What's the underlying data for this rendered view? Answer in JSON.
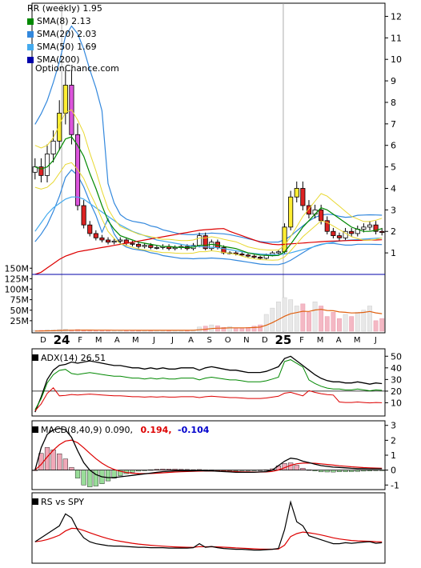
{
  "main": {
    "title": "RR (weekly) 1.95",
    "legend": [
      {
        "label": "SMA(8) 2.13",
        "color": "#008800"
      },
      {
        "label": "SMA(20) 2.03",
        "color": "#3388dd"
      },
      {
        "label": "SMA(50) 1.69",
        "color": "#44aaee"
      },
      {
        "label": "SMA(200)",
        "color": "#0000aa"
      }
    ],
    "site": "OptionChance.com",
    "price_ticks": [
      "1",
      "2",
      "3",
      "4",
      "5",
      "6",
      "7",
      "8",
      "9",
      "10",
      "11",
      "12"
    ],
    "volume_ticks": [
      "25M",
      "50M",
      "75M",
      "100M",
      "125M",
      "150M"
    ],
    "month_ticks": [
      "D",
      "24",
      "F",
      "M",
      "A",
      "M",
      "J",
      "J",
      "A",
      "S",
      "O",
      "N",
      "D",
      "25",
      "F",
      "M",
      "A",
      "M",
      "J"
    ]
  },
  "adx": {
    "label": "ADX(14) 26.51",
    "ticks": [
      "10",
      "20",
      "30",
      "40",
      "50"
    ]
  },
  "macd": {
    "label": "MACD(8,40,9) 0.090,",
    "signal": "0.194,",
    "hist": "-0.104",
    "signal_color": "#dd0000",
    "hist_color": "#0000cc",
    "ticks": [
      "-1",
      "0",
      "1",
      "2",
      "3"
    ]
  },
  "rs": {
    "label": "RS vs SPY"
  },
  "chart_data": {
    "type": "candlestick",
    "title": "RR (weekly) 1.95",
    "y_range": [
      0,
      12.5
    ],
    "weeks": 58,
    "close": [
      5.0,
      4.6,
      5.6,
      6.2,
      7.5,
      8.8,
      6.5,
      3.2,
      2.3,
      1.9,
      1.7,
      1.6,
      1.5,
      1.55,
      1.6,
      1.45,
      1.4,
      1.3,
      1.35,
      1.25,
      1.25,
      1.3,
      1.2,
      1.25,
      1.3,
      1.2,
      1.35,
      1.8,
      1.2,
      1.5,
      1.25,
      1.0,
      1.0,
      0.95,
      0.9,
      0.85,
      0.8,
      0.75,
      0.9,
      1.0,
      1.05,
      2.2,
      3.6,
      4.0,
      3.2,
      2.8,
      3.0,
      2.5,
      2.0,
      1.8,
      1.7,
      2.0,
      1.9,
      2.1,
      2.2,
      2.3,
      2.0,
      1.95
    ],
    "sma8": [
      5.0,
      4.9,
      5.0,
      5.3,
      5.8,
      6.3,
      6.4,
      6.0,
      5.5,
      4.7,
      4.0,
      3.2,
      2.5,
      2.1,
      1.8,
      1.7,
      1.6,
      1.5,
      1.45,
      1.4,
      1.35,
      1.3,
      1.3,
      1.27,
      1.25,
      1.25,
      1.27,
      1.35,
      1.35,
      1.4,
      1.36,
      1.3,
      1.25,
      1.2,
      1.1,
      1.0,
      0.95,
      0.9,
      0.88,
      0.87,
      0.88,
      1.05,
      1.4,
      1.8,
      2.2,
      2.5,
      2.8,
      3.1,
      3.0,
      2.8,
      2.6,
      2.4,
      2.2,
      2.1,
      2.0,
      2.0,
      2.05,
      2.13
    ],
    "sma20": [
      4.0,
      4.4,
      4.9,
      5.6,
      6.4,
      7.4,
      7.8,
      7.5,
      6.9,
      6.1,
      5.4,
      4.5,
      3.4,
      2.6,
      2.1,
      1.9,
      1.8,
      1.75,
      1.7,
      1.6,
      1.55,
      1.45,
      1.4,
      1.35,
      1.3,
      1.3,
      1.28,
      1.3,
      1.3,
      1.32,
      1.3,
      1.28,
      1.25,
      1.2,
      1.15,
      1.1,
      1.05,
      1.0,
      0.98,
      0.97,
      0.97,
      1.05,
      1.2,
      1.4,
      1.6,
      1.8,
      1.95,
      2.05,
      2.1,
      2.1,
      2.05,
      2.0,
      2.0,
      2.05,
      2.05,
      2.05,
      2.04,
      2.03
    ],
    "sma50": [
      2.0,
      2.4,
      2.8,
      3.1,
      3.3,
      3.5,
      3.6,
      3.6,
      3.5,
      3.3,
      3.1,
      2.9,
      2.7,
      2.5,
      2.3,
      2.15,
      2.0,
      1.9,
      1.8,
      1.7,
      1.6,
      1.55,
      1.5,
      1.45,
      1.4,
      1.35,
      1.32,
      1.3,
      1.28,
      1.26,
      1.24,
      1.2,
      1.15,
      1.1,
      1.05,
      1.0,
      0.97,
      0.95,
      0.93,
      0.92,
      0.92,
      0.95,
      1.0,
      1.08,
      1.15,
      1.22,
      1.3,
      1.38,
      1.45,
      1.5,
      1.55,
      1.58,
      1.6,
      1.62,
      1.64,
      1.66,
      1.68,
      1.69
    ],
    "sma200": [
      0,
      0.1,
      0.3,
      0.5,
      0.7,
      0.85,
      0.95,
      1.05,
      1.1,
      1.15,
      1.2,
      1.25,
      1.3,
      1.35,
      1.4,
      1.45,
      1.5,
      1.55,
      1.6,
      1.65,
      1.7,
      1.75,
      1.8,
      1.85,
      1.9,
      1.95,
      2.0,
      2.05,
      2.08,
      2.1,
      2.12,
      2.13,
      2.0,
      1.9,
      1.8,
      1.7,
      1.6,
      1.5,
      1.45,
      1.4,
      1.38,
      1.4,
      1.42,
      1.44,
      1.46,
      1.48,
      1.5,
      1.52,
      1.54,
      1.55,
      1.56,
      1.57,
      1.58,
      1.58,
      1.59,
      1.6,
      1.6,
      1.61
    ],
    "volume_millions": [
      2,
      2,
      3,
      3,
      4,
      5,
      3,
      4,
      3,
      3,
      2,
      2,
      2,
      2,
      2,
      2,
      2,
      2,
      2,
      2,
      2,
      2,
      2,
      2,
      2,
      2,
      3,
      10,
      12,
      15,
      13,
      9,
      11,
      8,
      8,
      9,
      12,
      15,
      40,
      55,
      70,
      80,
      75,
      60,
      65,
      45,
      70,
      60,
      35,
      45,
      30,
      40,
      35,
      45,
      50,
      60,
      25,
      30
    ],
    "adx": [
      2,
      15,
      30,
      38,
      42,
      43,
      45,
      44,
      45,
      46,
      45,
      44,
      43,
      42,
      42,
      41,
      40,
      40,
      39,
      40,
      39,
      40,
      39,
      39,
      40,
      40,
      40,
      38,
      40,
      41,
      40,
      39,
      38,
      38,
      37,
      36,
      36,
      36,
      37,
      39,
      41,
      48,
      50,
      46,
      42,
      38,
      34,
      31,
      29,
      28,
      28,
      27,
      27,
      28,
      27,
      26,
      27,
      26.5
    ],
    "macd": [
      0,
      1.5,
      2.4,
      2.7,
      2.8,
      2.7,
      2.2,
      1.3,
      0.5,
      0,
      -0.3,
      -0.45,
      -0.5,
      -0.5,
      -0.45,
      -0.4,
      -0.35,
      -0.3,
      -0.25,
      -0.2,
      -0.15,
      -0.1,
      -0.08,
      -0.05,
      -0.05,
      -0.05,
      -0.05,
      -0.03,
      -0.05,
      -0.05,
      -0.08,
      -0.1,
      -0.12,
      -0.15,
      -0.15,
      -0.15,
      -0.15,
      -0.12,
      -0.1,
      0.0,
      0.3,
      0.6,
      0.8,
      0.75,
      0.6,
      0.5,
      0.4,
      0.3,
      0.25,
      0.2,
      0.18,
      0.15,
      0.12,
      0.1,
      0.1,
      0.09,
      0.09,
      0.09
    ],
    "rs": [
      1.0,
      1.2,
      1.4,
      1.6,
      1.8,
      2.4,
      2.2,
      1.6,
      1.2,
      1.0,
      0.9,
      0.85,
      0.8,
      0.78,
      0.78,
      0.76,
      0.74,
      0.72,
      0.72,
      0.7,
      0.7,
      0.7,
      0.68,
      0.68,
      0.68,
      0.68,
      0.7,
      0.9,
      0.72,
      0.76,
      0.7,
      0.66,
      0.64,
      0.62,
      0.62,
      0.6,
      0.58,
      0.58,
      0.6,
      0.62,
      0.66,
      1.6,
      3.0,
      2.0,
      1.8,
      1.3,
      1.2,
      1.1,
      1.0,
      0.9,
      0.9,
      0.95,
      0.92,
      0.95,
      0.98,
      1.0,
      0.92,
      0.95
    ]
  }
}
